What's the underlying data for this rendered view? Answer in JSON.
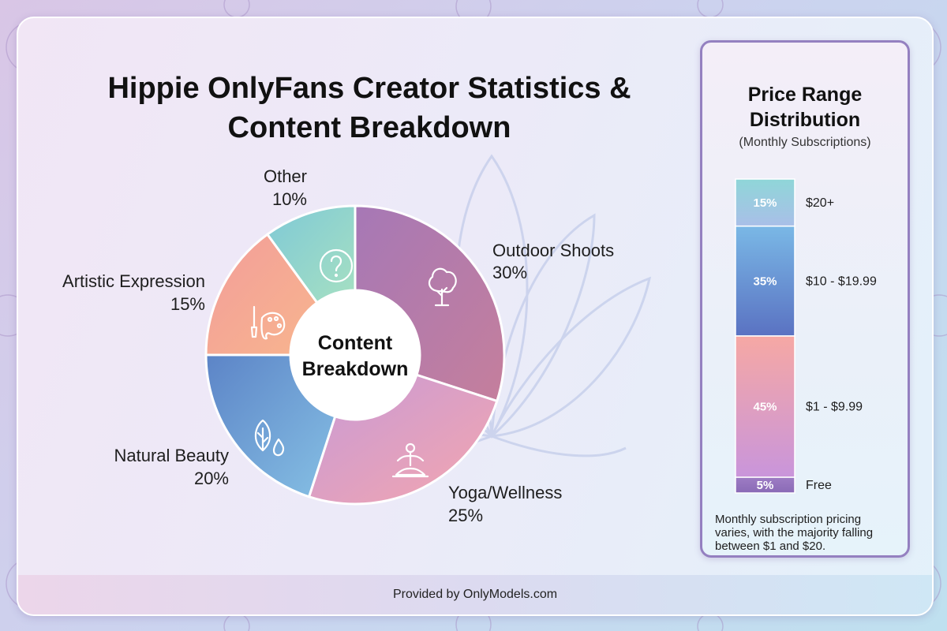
{
  "title": "Hippie OnlyFans Creator Statistics & Content Breakdown",
  "colors": {
    "outdoor": [
      "#a678b6",
      "#c57f9c"
    ],
    "yoga": [
      "#c89ad6",
      "#f4a6ae"
    ],
    "natural": [
      "#5c84c7",
      "#86c0e4"
    ],
    "artistic": [
      "#f29d9a",
      "#f8b58e"
    ],
    "other": [
      "#7fc9d6",
      "#a6e0c2"
    ]
  },
  "chart_data": [
    {
      "type": "pie",
      "title": "Content Breakdown",
      "center_label": [
        "Content",
        "Breakdown"
      ],
      "slices": [
        {
          "name": "Outdoor Shoots",
          "value": 30,
          "label": "30%",
          "icon": "tree-icon"
        },
        {
          "name": "Yoga/Wellness",
          "value": 25,
          "label": "25%",
          "icon": "meditation-icon"
        },
        {
          "name": "Natural Beauty",
          "value": 20,
          "label": "20%",
          "icon": "leaf-drop-icon"
        },
        {
          "name": "Artistic Expression",
          "value": 15,
          "label": "15%",
          "icon": "palette-brush-icon"
        },
        {
          "name": "Other",
          "value": 10,
          "label": "10%",
          "icon": "question-icon"
        }
      ]
    },
    {
      "type": "bar",
      "stacked": true,
      "title": "Price Range Distribution",
      "subtitle": "(Monthly Subscriptions)",
      "categories": [
        "$20+",
        "$10 - $19.99",
        "$1 - $9.99",
        "Free"
      ],
      "values": [
        15,
        35,
        45,
        5
      ],
      "value_labels": [
        "15%",
        "35%",
        "45%",
        "5%"
      ],
      "note": "Monthly subscription pricing varies, with the majority falling between $1 and $20."
    }
  ],
  "footer": {
    "text": "Provided by OnlyModels.com"
  }
}
